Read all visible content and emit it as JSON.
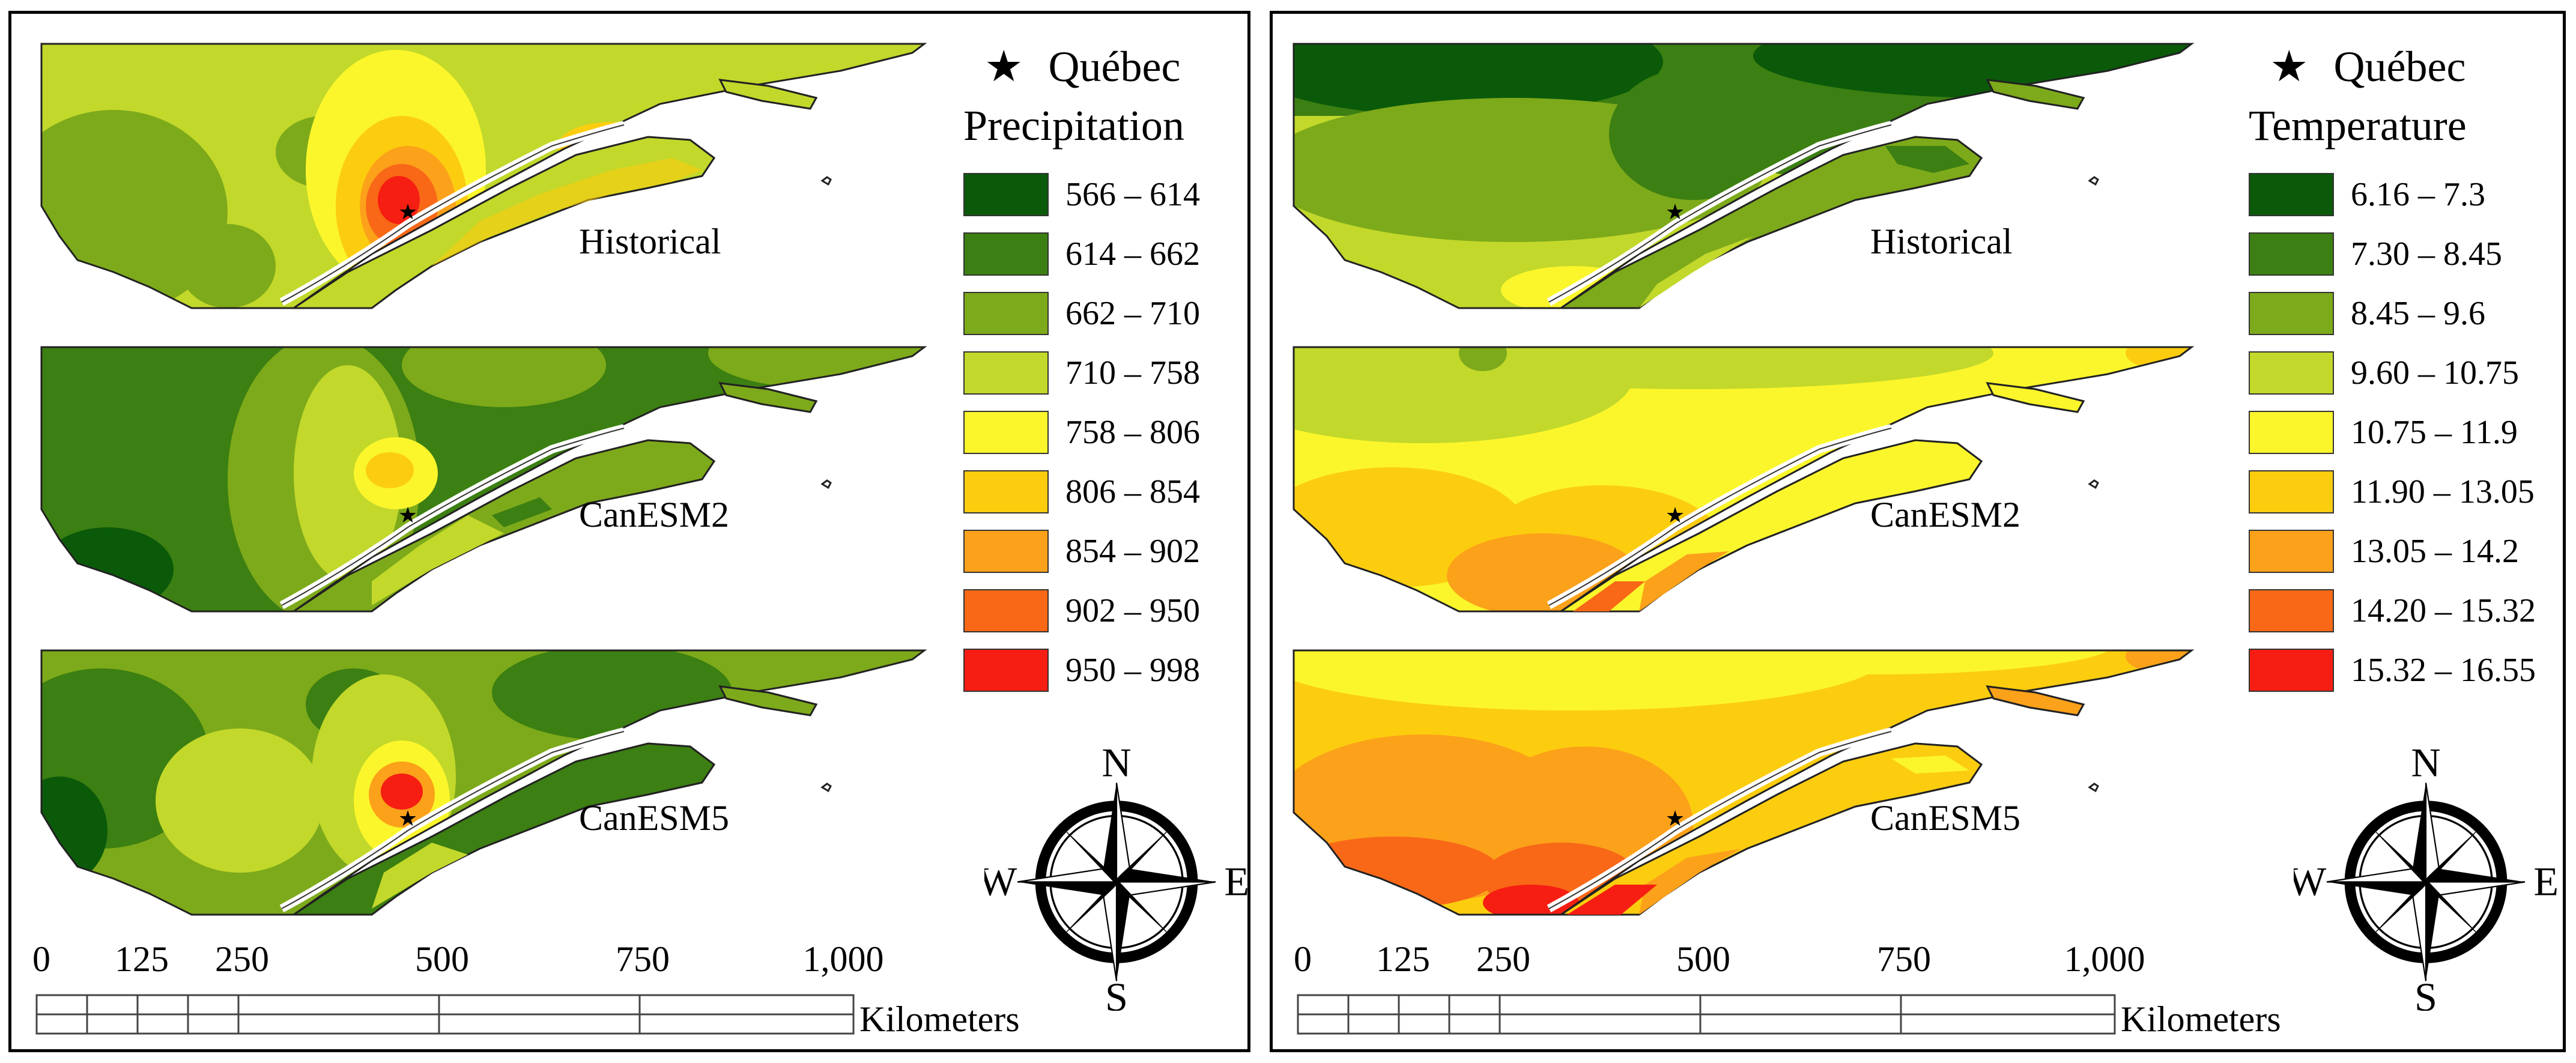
{
  "figure": {
    "panels": [
      {
        "id": "precipitation",
        "place_label": "Québec",
        "legend_title": "Precipitation",
        "scenarios": [
          "Historical",
          "CanESM2",
          "CanESM5"
        ],
        "legend": [
          {
            "label": "566 – 614",
            "color": "#0b5a0a"
          },
          {
            "label": "614 – 662",
            "color": "#3c7f12"
          },
          {
            "label": "662 – 710",
            "color": "#7daa1a"
          },
          {
            "label": "710 – 758",
            "color": "#c2d82b"
          },
          {
            "label": "758 – 806",
            "color": "#fbf62b"
          },
          {
            "label": "806 – 854",
            "color": "#fccd0f"
          },
          {
            "label": "854 – 902",
            "color": "#fca11a"
          },
          {
            "label": "902 – 950",
            "color": "#f86817"
          },
          {
            "label": "950 – 998",
            "color": "#f61e12"
          }
        ],
        "scale_ticks": [
          "0",
          "125",
          "250",
          "500",
          "750",
          "1,000"
        ],
        "scale_units": "Kilometers",
        "compass": {
          "n": "N",
          "s": "S",
          "e": "E",
          "w": "W"
        }
      },
      {
        "id": "temperature",
        "place_label": "Québec",
        "legend_title": "Temperature",
        "scenarios": [
          "Historical",
          "CanESM2",
          "CanESM5"
        ],
        "legend": [
          {
            "label": "6.16  – 7.3",
            "color": "#0b5a0a"
          },
          {
            "label": "7.30  – 8.45",
            "color": "#3c7f12"
          },
          {
            "label": "8.45  – 9.6",
            "color": "#7daa1a"
          },
          {
            "label": "9.60  – 10.75",
            "color": "#c2d82b"
          },
          {
            "label": "10.75 – 11.9",
            "color": "#fbf62b"
          },
          {
            "label": "11.90 – 13.05",
            "color": "#fccd0f"
          },
          {
            "label": "13.05 – 14.2",
            "color": "#fca11a"
          },
          {
            "label": "14.20 – 15.32",
            "color": "#f86817"
          },
          {
            "label": "15.32 – 16.55",
            "color": "#f61e12"
          }
        ],
        "scale_ticks": [
          "0",
          "125",
          "250",
          "500",
          "750",
          "1,000"
        ],
        "scale_units": "Kilometers",
        "compass": {
          "n": "N",
          "s": "S",
          "e": "E",
          "w": "W"
        }
      }
    ]
  }
}
